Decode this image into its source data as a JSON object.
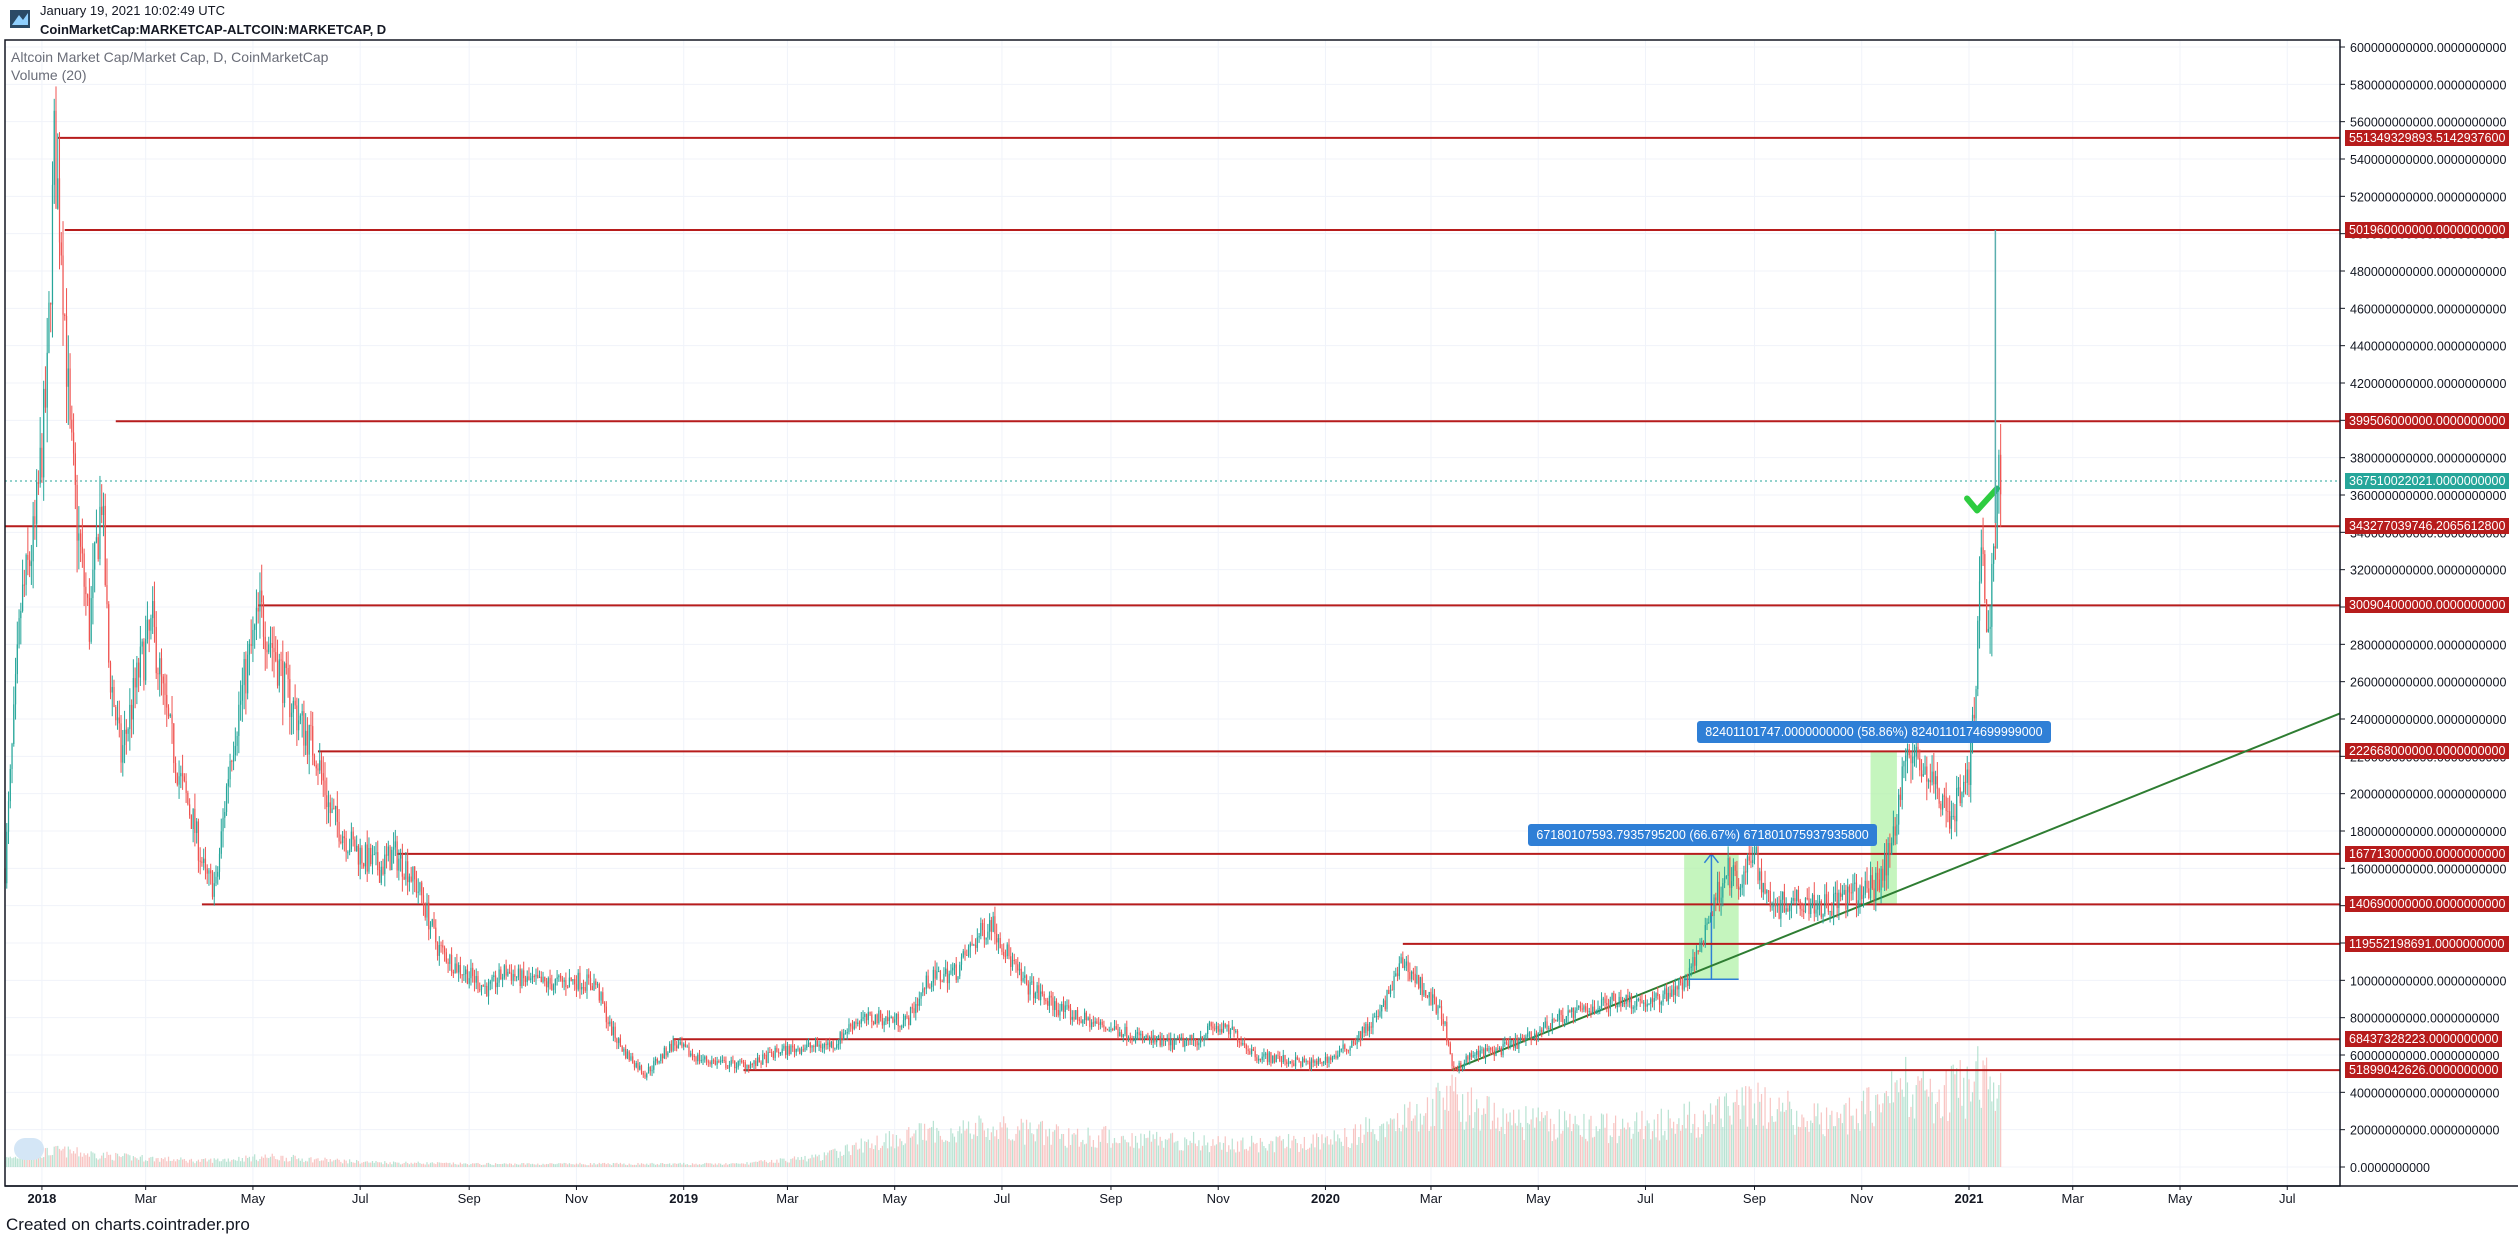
{
  "header": {
    "date": "January 19, 2021 10:02:49 UTC",
    "symbol": "CoinMarketCap:MARKETCAP-ALTCOIN:MARKETCAP, D"
  },
  "legend": {
    "title": "Altcoin Market Cap/Market Cap, D, CoinMarketCap",
    "volume": "Volume (20)"
  },
  "footer": "Created on charts.cointrader.pro",
  "colors": {
    "up": "#26a69a",
    "down": "#ef5350",
    "resistance": "#b71c1c",
    "trend": "#2e7d32",
    "measure_fill": "#b2f2a8",
    "measure_label": "#2f7fd6",
    "current_price": "#26a69a"
  },
  "chart_data": {
    "type": "candlestick",
    "y_axis": {
      "min": 0,
      "max": 600000000000,
      "ticks": [
        "600000000000.0000000000",
        "580000000000.0000000000",
        "560000000000.0000000000",
        "540000000000.0000000000",
        "520000000000.0000000000",
        "500000000000.0000000000",
        "480000000000.0000000000",
        "460000000000.0000000000",
        "440000000000.0000000000",
        "420000000000.0000000000",
        "400000000000.0000000000",
        "380000000000.0000000000",
        "360000000000.0000000000",
        "340000000000.0000000000",
        "320000000000.0000000000",
        "300000000000.0000000000",
        "280000000000.0000000000",
        "260000000000.0000000000",
        "240000000000.0000000000",
        "220000000000.0000000000",
        "200000000000.0000000000",
        "180000000000.0000000000",
        "160000000000.0000000000",
        "140000000000.0000000000",
        "120000000000.0000000000",
        "100000000000.0000000000",
        "80000000000.0000000000",
        "60000000000.0000000000",
        "40000000000.0000000000",
        "20000000000.0000000000",
        "0.0000000000"
      ]
    },
    "x_axis": {
      "start": "2017-12-11",
      "end": "2021-07-31",
      "ticks": [
        {
          "label": "2018",
          "date": "2018-01-01",
          "bold": true
        },
        {
          "label": "Mar",
          "date": "2018-03-01"
        },
        {
          "label": "May",
          "date": "2018-05-01"
        },
        {
          "label": "Jul",
          "date": "2018-07-01"
        },
        {
          "label": "Sep",
          "date": "2018-09-01"
        },
        {
          "label": "Nov",
          "date": "2018-11-01"
        },
        {
          "label": "2019",
          "date": "2019-01-01",
          "bold": true
        },
        {
          "label": "Mar",
          "date": "2019-03-01"
        },
        {
          "label": "May",
          "date": "2019-05-01"
        },
        {
          "label": "Jul",
          "date": "2019-07-01"
        },
        {
          "label": "Sep",
          "date": "2019-09-01"
        },
        {
          "label": "Nov",
          "date": "2019-11-01"
        },
        {
          "label": "2020",
          "date": "2020-01-01",
          "bold": true
        },
        {
          "label": "Mar",
          "date": "2020-03-01"
        },
        {
          "label": "May",
          "date": "2020-05-01"
        },
        {
          "label": "Jul",
          "date": "2020-07-01"
        },
        {
          "label": "Sep",
          "date": "2020-09-01"
        },
        {
          "label": "Nov",
          "date": "2020-11-01"
        },
        {
          "label": "2021",
          "date": "2021-01-01",
          "bold": true
        },
        {
          "label": "Mar",
          "date": "2021-03-01"
        },
        {
          "label": "May",
          "date": "2021-05-01"
        },
        {
          "label": "Jul",
          "date": "2021-07-01"
        }
      ]
    },
    "price_path": [
      [
        "2017-12-11",
        160
      ],
      [
        "2017-12-20",
        300
      ],
      [
        "2017-12-28",
        340
      ],
      [
        "2018-01-04",
        420
      ],
      [
        "2018-01-08",
        545
      ],
      [
        "2018-01-12",
        500
      ],
      [
        "2018-01-17",
        390
      ],
      [
        "2018-01-22",
        335
      ],
      [
        "2018-01-28",
        290
      ],
      [
        "2018-02-04",
        360
      ],
      [
        "2018-02-08",
        270
      ],
      [
        "2018-02-15",
        220
      ],
      [
        "2018-02-25",
        265
      ],
      [
        "2018-03-05",
        290
      ],
      [
        "2018-03-12",
        245
      ],
      [
        "2018-03-20",
        210
      ],
      [
        "2018-03-28",
        185
      ],
      [
        "2018-04-04",
        155
      ],
      [
        "2018-04-10",
        150
      ],
      [
        "2018-04-18",
        220
      ],
      [
        "2018-04-26",
        260
      ],
      [
        "2018-05-05",
        298
      ],
      [
        "2018-05-12",
        280
      ],
      [
        "2018-05-20",
        255
      ],
      [
        "2018-05-28",
        238
      ],
      [
        "2018-06-06",
        222
      ],
      [
        "2018-06-14",
        190
      ],
      [
        "2018-06-24",
        175
      ],
      [
        "2018-07-04",
        165
      ],
      [
        "2018-07-12",
        160
      ],
      [
        "2018-07-20",
        168
      ],
      [
        "2018-07-28",
        160
      ],
      [
        "2018-08-05",
        145
      ],
      [
        "2018-08-14",
        118
      ],
      [
        "2018-08-24",
        108
      ],
      [
        "2018-09-02",
        102
      ],
      [
        "2018-09-12",
        95
      ],
      [
        "2018-09-22",
        105
      ],
      [
        "2018-10-02",
        100
      ],
      [
        "2018-10-15",
        98
      ],
      [
        "2018-11-01",
        100
      ],
      [
        "2018-11-12",
        98
      ],
      [
        "2018-11-20",
        75
      ],
      [
        "2018-11-28",
        62
      ],
      [
        "2018-12-10",
        50
      ],
      [
        "2018-12-18",
        58
      ],
      [
        "2018-12-26",
        66
      ],
      [
        "2019-01-10",
        58
      ],
      [
        "2019-01-25",
        55
      ],
      [
        "2019-02-10",
        55
      ],
      [
        "2019-02-24",
        62
      ],
      [
        "2019-03-10",
        64
      ],
      [
        "2019-03-28",
        66
      ],
      [
        "2019-04-08",
        78
      ],
      [
        "2019-04-22",
        80
      ],
      [
        "2019-05-08",
        78
      ],
      [
        "2019-05-20",
        100
      ],
      [
        "2019-06-05",
        105
      ],
      [
        "2019-06-15",
        120
      ],
      [
        "2019-06-25",
        132
      ],
      [
        "2019-07-02",
        118
      ],
      [
        "2019-07-12",
        100
      ],
      [
        "2019-07-25",
        90
      ],
      [
        "2019-08-08",
        82
      ],
      [
        "2019-08-25",
        76
      ],
      [
        "2019-09-10",
        72
      ],
      [
        "2019-09-22",
        68
      ],
      [
        "2019-10-05",
        66
      ],
      [
        "2019-10-20",
        68
      ],
      [
        "2019-10-28",
        75
      ],
      [
        "2019-11-10",
        72
      ],
      [
        "2019-11-22",
        60
      ],
      [
        "2019-12-10",
        57
      ],
      [
        "2019-12-25",
        55
      ],
      [
        "2020-01-08",
        60
      ],
      [
        "2020-01-20",
        70
      ],
      [
        "2020-02-01",
        82
      ],
      [
        "2020-02-14",
        110
      ],
      [
        "2020-02-22",
        100
      ],
      [
        "2020-03-01",
        90
      ],
      [
        "2020-03-08",
        80
      ],
      [
        "2020-03-13",
        52
      ],
      [
        "2020-03-25",
        60
      ],
      [
        "2020-04-10",
        63
      ],
      [
        "2020-04-28",
        70
      ],
      [
        "2020-05-12",
        80
      ],
      [
        "2020-05-28",
        84
      ],
      [
        "2020-06-15",
        90
      ],
      [
        "2020-07-05",
        88
      ],
      [
        "2020-07-25",
        100
      ],
      [
        "2020-08-05",
        130
      ],
      [
        "2020-08-16",
        160
      ],
      [
        "2020-08-24",
        148
      ],
      [
        "2020-09-01",
        172
      ],
      [
        "2020-09-05",
        150
      ],
      [
        "2020-09-15",
        140
      ],
      [
        "2020-09-25",
        145
      ],
      [
        "2020-10-10",
        140
      ],
      [
        "2020-10-25",
        145
      ],
      [
        "2020-11-08",
        150
      ],
      [
        "2020-11-18",
        170
      ],
      [
        "2020-11-25",
        220
      ],
      [
        "2020-12-05",
        215
      ],
      [
        "2020-12-15",
        200
      ],
      [
        "2020-12-22",
        188
      ],
      [
        "2021-01-01",
        210
      ],
      [
        "2021-01-03",
        235
      ],
      [
        "2021-01-07",
        300
      ],
      [
        "2021-01-09",
        345
      ],
      [
        "2021-01-11",
        275
      ],
      [
        "2021-01-14",
        318
      ],
      [
        "2021-01-17",
        360
      ],
      [
        "2021-01-19",
        367.51
      ]
    ],
    "price_unit": "billions",
    "last_price": {
      "value": 367510022021,
      "label": "367510022021.0000000000"
    },
    "spike_wick": {
      "date": "2021-01-16",
      "high": 501960000000
    },
    "horizontal_levels": [
      {
        "value": 551349329893,
        "label": "551349329893.5142937600",
        "start": "2018-01-10"
      },
      {
        "value": 501960000000,
        "label": "501960000000.0000000000",
        "start": "2018-01-14"
      },
      {
        "value": 399506000000,
        "label": "399506000000.0000000000",
        "start": "2018-02-12"
      },
      {
        "value": 343277039746,
        "label": "343277039746.2065612800",
        "start": "2017-12-11"
      },
      {
        "value": 300904000000,
        "label": "300904000000.0000000000",
        "start": "2018-05-04"
      },
      {
        "value": 222668000000,
        "label": "222668000000.0000000000",
        "start": "2018-06-07"
      },
      {
        "value": 167713000000,
        "label": "167713000000.0000000000",
        "start": "2018-07-22"
      },
      {
        "value": 140690000000,
        "label": "140690000000.0000000000",
        "start": "2018-04-02"
      },
      {
        "value": 119552198691,
        "label": "119552198691.0000000000",
        "start": "2020-02-14"
      },
      {
        "value": 68437328223,
        "label": "68437328223.0000000000",
        "start": "2018-12-26"
      },
      {
        "value": 51899042626,
        "label": "51899042626.0000000000",
        "start": "2019-02-04"
      }
    ],
    "trend_line": {
      "from": {
        "date": "2020-03-13",
        "value": 52000000000
      },
      "to": {
        "date": "2021-07-31",
        "value": 243000000000
      }
    },
    "measurements": [
      {
        "from": "2020-07-23",
        "to": "2020-08-23",
        "low": 100600000000,
        "high": 167780000000,
        "label": "67180107593.7935795200 (66.67%) 671801075937935800"
      },
      {
        "from": "2020-11-06",
        "to": "2020-11-21",
        "low": 140300000000,
        "high": 222700000000,
        "label": "82401101747.0000000000 (58.86%) 8240110174699999000"
      }
    ],
    "checkmark": {
      "date": "2021-01-09",
      "value": 356000000000
    },
    "volume_profile": [
      [
        "2017-12-11",
        8
      ],
      [
        "2018-01-10",
        16
      ],
      [
        "2018-02-15",
        10
      ],
      [
        "2018-04-01",
        6
      ],
      [
        "2018-05-10",
        10
      ],
      [
        "2018-07-01",
        5
      ],
      [
        "2018-09-01",
        3
      ],
      [
        "2018-11-15",
        3
      ],
      [
        "2019-02-01",
        3
      ],
      [
        "2019-03-20",
        10
      ],
      [
        "2019-05-01",
        30
      ],
      [
        "2019-06-20",
        38
      ],
      [
        "2019-08-15",
        30
      ],
      [
        "2019-10-01",
        28
      ],
      [
        "2019-11-15",
        22
      ],
      [
        "2020-01-05",
        26
      ],
      [
        "2020-02-20",
        52
      ],
      [
        "2020-03-13",
        66
      ],
      [
        "2020-04-20",
        44
      ],
      [
        "2020-06-15",
        38
      ],
      [
        "2020-08-10",
        50
      ],
      [
        "2020-09-05",
        62
      ],
      [
        "2020-10-15",
        42
      ],
      [
        "2020-11-25",
        80
      ],
      [
        "2020-12-15",
        66
      ],
      [
        "2021-01-10",
        90
      ],
      [
        "2021-01-19",
        70
      ]
    ]
  }
}
